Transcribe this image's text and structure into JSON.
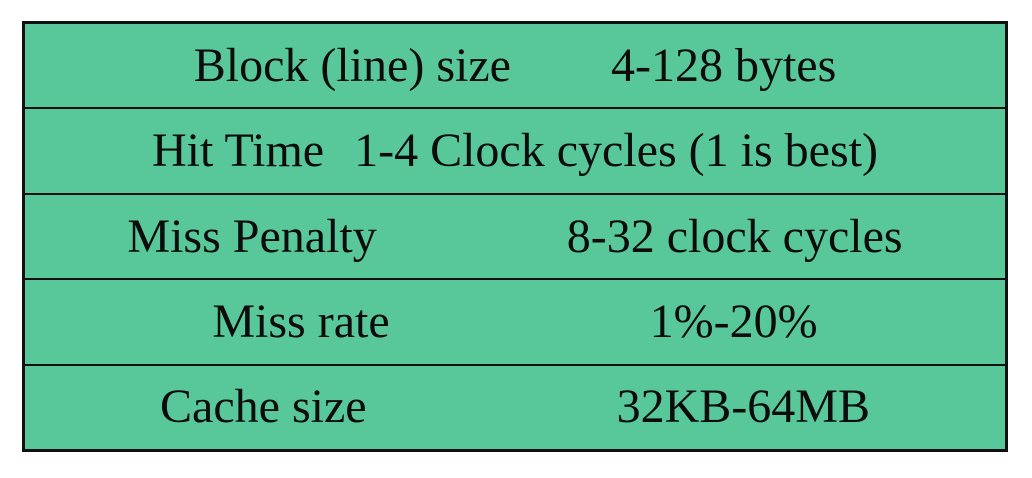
{
  "table": {
    "name": "cache-parameters-table",
    "colors": {
      "cell_background": "#58c79a",
      "border": "#101010",
      "text": "#0c0c0c",
      "page_background": "#ffffff"
    },
    "rows": [
      {
        "label": "Block (line) size",
        "value": "4-128 bytes"
      },
      {
        "label": "Hit Time",
        "value": "1-4 Clock cycles (1 is best)"
      },
      {
        "label": "Miss Penalty",
        "value": "8-32 clock cycles"
      },
      {
        "label": "Miss rate",
        "value": "1%-20%"
      },
      {
        "label": "Cache size",
        "value": "32KB-64MB"
      }
    ]
  }
}
